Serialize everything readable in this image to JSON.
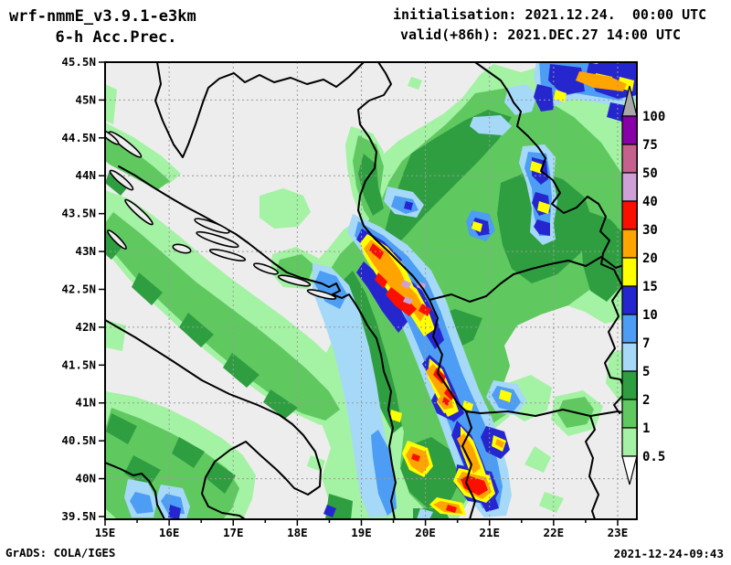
{
  "header": {
    "model_title": "wrf-nmmE_v3.9.1-e3km",
    "product_title": "6-h Acc.Prec.",
    "init_line": "initialisation: 2021.12.24.  00:00 UTC",
    "valid_line": "valid(+86h): 2021.DEC.27 14:00 UTC"
  },
  "footer": {
    "credit": "GrADS: COLA/IGES",
    "timestamp": "2021-12-24-09:43"
  },
  "axes": {
    "lat_ticks": [
      {
        "value": 45.5,
        "label": "45.5N"
      },
      {
        "value": 45.0,
        "label": "45N"
      },
      {
        "value": 44.5,
        "label": "44.5N"
      },
      {
        "value": 44.0,
        "label": "44N"
      },
      {
        "value": 43.5,
        "label": "43.5N"
      },
      {
        "value": 43.0,
        "label": "43N"
      },
      {
        "value": 42.5,
        "label": "42.5N"
      },
      {
        "value": 42.0,
        "label": "42N"
      },
      {
        "value": 41.5,
        "label": "41.5N"
      },
      {
        "value": 41.0,
        "label": "41N"
      },
      {
        "value": 40.5,
        "label": "40.5N"
      },
      {
        "value": 40.0,
        "label": "40N"
      },
      {
        "value": 39.5,
        "label": "39.5N"
      }
    ],
    "lon_ticks": [
      {
        "value": 15,
        "label": "15E"
      },
      {
        "value": 16,
        "label": "16E"
      },
      {
        "value": 17,
        "label": "17E"
      },
      {
        "value": 18,
        "label": "18E"
      },
      {
        "value": 19,
        "label": "19E"
      },
      {
        "value": 20,
        "label": "20E"
      },
      {
        "value": 21,
        "label": "21E"
      },
      {
        "value": 22,
        "label": "22E"
      },
      {
        "value": 23,
        "label": "23E"
      }
    ],
    "lon_minor_ticks": [
      15.5,
      16.5,
      17.5,
      18.5,
      19.5,
      20.5,
      21.5,
      22.5
    ],
    "lat_gridlines": [
      45,
      44,
      43,
      42,
      41,
      40
    ],
    "lon_gridlines": [
      16,
      17,
      18,
      19,
      20,
      21,
      22,
      23
    ]
  },
  "legend": {
    "entries": [
      {
        "label": "100",
        "color": "#8800a8"
      },
      {
        "label": "75",
        "color": "#c4618d"
      },
      {
        "label": "50",
        "color": "#cfa0d8"
      },
      {
        "label": "40",
        "color": "#fa0f00"
      },
      {
        "label": "30",
        "color": "#ffa400"
      },
      {
        "label": "20",
        "color": "#ffff00"
      },
      {
        "label": "15",
        "color": "#2626cf"
      },
      {
        "label": "10",
        "color": "#4c9df3"
      },
      {
        "label": "7",
        "color": "#a6d9f7"
      },
      {
        "label": "5",
        "color": "#2f9e41"
      },
      {
        "label": "2",
        "color": "#5fc960"
      },
      {
        "label": "1",
        "color": "#a4f2a4"
      }
    ],
    "bottom_label": "0.5",
    "overflow_color": "#a8a8a8",
    "underflow_color": "#ffffff"
  },
  "palette": {
    "0.5": "#a4f2a4",
    "1": "#5fc960",
    "2": "#2f9e41",
    "5": "#a6d9f7",
    "7": "#4c9df3",
    "10": "#2626cf",
    "15": "#ffff00",
    "20": "#ffa400",
    "30": "#fa0f00",
    "40": "#cfa0d8",
    "50": "#c4618d",
    "75": "#8800a8"
  },
  "map": {
    "background": "#ededed",
    "gridline_color": "#9a9a9a",
    "line_color": "#000000"
  }
}
